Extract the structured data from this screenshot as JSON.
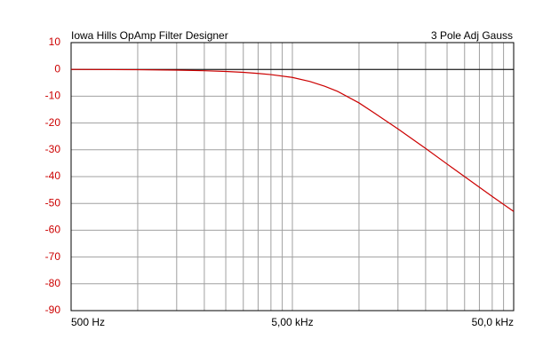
{
  "chart_data": {
    "type": "line",
    "title": "Iowa Hills OpAmp Filter Designer",
    "subtitle": "3 Pole Adj Gauss",
    "x": [
      500,
      1000,
      1500,
      2000,
      2500,
      3000,
      3500,
      4000,
      5000,
      6000,
      7000,
      8000,
      10000,
      12000,
      15000,
      20000,
      25000,
      30000,
      40000,
      50000
    ],
    "series": [
      {
        "name": "3 Pole Adj Gauss",
        "color": "#cc0000",
        "values": [
          0,
          -0.12,
          -0.27,
          -0.5,
          -0.75,
          -1.1,
          -1.5,
          -1.95,
          -3,
          -4.5,
          -6.3,
          -8.2,
          -12.5,
          -16.8,
          -22.2,
          -29.5,
          -35.3,
          -40,
          -47.4,
          -53
        ]
      }
    ],
    "xscale": "log",
    "xlim": [
      500,
      50000
    ],
    "xticks": [
      {
        "value": 500,
        "label": "500 Hz"
      },
      {
        "value": 5000,
        "label": "5,00 kHz"
      },
      {
        "value": 50000,
        "label": "50,0 kHz"
      }
    ],
    "xgrid": [
      1000,
      1500,
      2000,
      2500,
      3000,
      3500,
      4000,
      4500,
      10000,
      15000,
      20000,
      25000,
      30000,
      35000,
      40000,
      45000
    ],
    "ylim": [
      -90,
      10
    ],
    "yticks": [
      10,
      0,
      -10,
      -20,
      -30,
      -40,
      -50,
      -60,
      -70,
      -80,
      -90
    ],
    "grid": true,
    "reference_line": 0,
    "tick_color": "#cc0000"
  }
}
